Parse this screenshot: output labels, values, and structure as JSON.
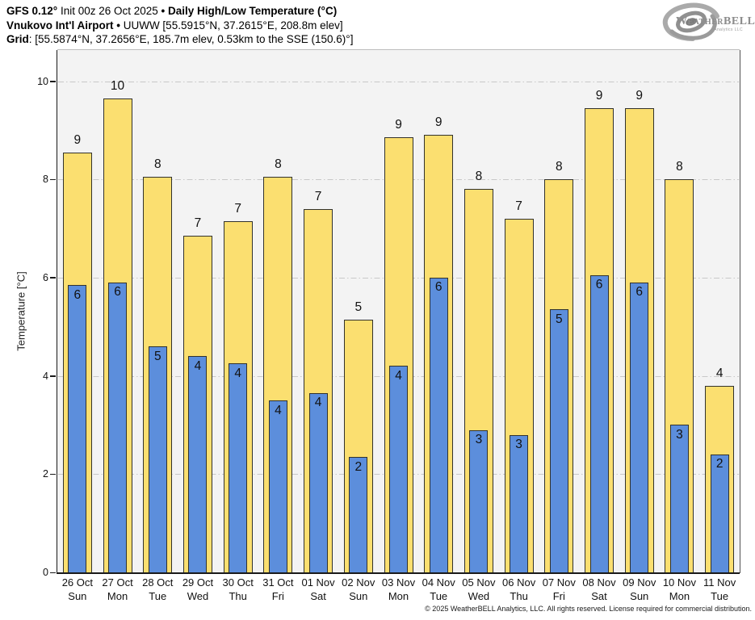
{
  "header": {
    "line1": {
      "seg1": "GFS 0.12°",
      "seg2": " Init 00z 26 Oct 2025 ",
      "seg3": "• ",
      "seg4": "Daily High/Low Temperature (°C)"
    },
    "line2": {
      "seg1": "Vnukovo Int'l Airport",
      "seg2": " • ",
      "seg3": "UUWW [55.5915°N, 37.2615°E, 208.8m elev]"
    },
    "line3": {
      "seg1": "Grid",
      "seg2": ": [55.5874°N, 37.2656°E, 185.7m elev, 0.53km to the SSE (150.6)°]"
    }
  },
  "logo": {
    "brand": "WeatherBELL",
    "sub": "Analytics LLC"
  },
  "footer": {
    "copyright": "© 2025 WeatherBELL Analytics, LLC. All rights reserved. License required for commercial distribution."
  },
  "colors": {
    "high_bar": "#FBDF70",
    "low_bar": "#5C8EDC",
    "bar_border": "#32322C",
    "plot_background": "#F3F3F3",
    "grid_line": "#C8C8C8",
    "axis": "#1A1A1A",
    "right_spine": "#555555",
    "top_spine": "#BDBDBD",
    "label_text": "#111111"
  },
  "chart_data": {
    "type": "bar",
    "title": "Daily High/Low Temperature (°C)",
    "subtitle": "GFS 0.12° Init 00z 26 Oct 2025 — Vnukovo Int'l Airport (UUWW)",
    "xlabel": "",
    "ylabel": "Temperature [°C]",
    "ylim": [
      0,
      10.6
    ],
    "yticks": [
      0,
      2,
      4,
      6,
      8,
      10
    ],
    "grid": "horizontal dash-dot at yticks",
    "legend": "none (high = yellow outer bar, low = blue inner bar)",
    "categories": [
      {
        "date": "26 Oct",
        "day": "Sun"
      },
      {
        "date": "27 Oct",
        "day": "Mon"
      },
      {
        "date": "28 Oct",
        "day": "Tue"
      },
      {
        "date": "29 Oct",
        "day": "Wed"
      },
      {
        "date": "30 Oct",
        "day": "Thu"
      },
      {
        "date": "31 Oct",
        "day": "Fri"
      },
      {
        "date": "01 Nov",
        "day": "Sat"
      },
      {
        "date": "02 Nov",
        "day": "Sun"
      },
      {
        "date": "03 Nov",
        "day": "Mon"
      },
      {
        "date": "04 Nov",
        "day": "Tue"
      },
      {
        "date": "05 Nov",
        "day": "Wed"
      },
      {
        "date": "06 Nov",
        "day": "Thu"
      },
      {
        "date": "07 Nov",
        "day": "Fri"
      },
      {
        "date": "08 Nov",
        "day": "Sat"
      },
      {
        "date": "09 Nov",
        "day": "Sun"
      },
      {
        "date": "10 Nov",
        "day": "Mon"
      },
      {
        "date": "11 Nov",
        "day": "Tue"
      }
    ],
    "series": [
      {
        "name": "Daily High",
        "color": "#FBDF70",
        "labels": [
          9,
          10,
          8,
          7,
          7,
          8,
          7,
          5,
          9,
          9,
          8,
          7,
          8,
          9,
          9,
          8,
          4
        ],
        "values": [
          8.55,
          9.65,
          8.05,
          6.85,
          7.15,
          8.05,
          7.4,
          5.15,
          8.85,
          8.9,
          7.8,
          7.2,
          8.0,
          9.45,
          9.45,
          8.0,
          3.8
        ]
      },
      {
        "name": "Daily Low",
        "color": "#5C8EDC",
        "labels": [
          6,
          6,
          5,
          4,
          4,
          4,
          4,
          2,
          4,
          6,
          3,
          3,
          5,
          6,
          6,
          3,
          2
        ],
        "values": [
          5.85,
          5.9,
          4.6,
          4.4,
          4.25,
          3.5,
          3.65,
          2.35,
          4.2,
          6.0,
          2.9,
          2.8,
          5.35,
          6.05,
          5.9,
          3.0,
          2.4
        ]
      }
    ]
  }
}
